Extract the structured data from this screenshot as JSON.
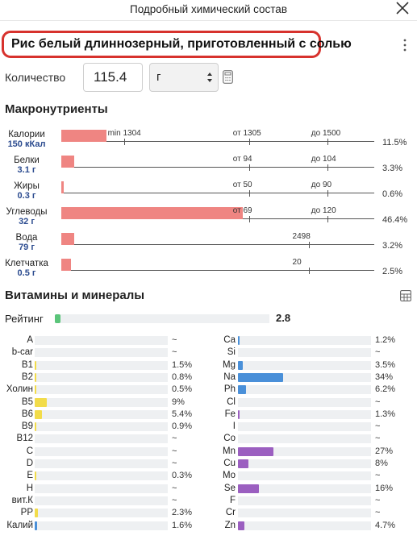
{
  "header": {
    "title": "Подробный химический состав"
  },
  "product": {
    "name": "Рис белый длиннозерный, приготовленный с солью"
  },
  "quantity": {
    "label": "Количество",
    "value": "115.4",
    "unit": "г"
  },
  "macros": {
    "title": "Макронутриенты",
    "items": [
      {
        "name": "Калории",
        "amount": "150 кКал",
        "fraction": 0.115,
        "percent": "11.5%",
        "norm": [
          {
            "text": "min 1304",
            "mark": 0.2
          },
          {
            "text": "от 1305",
            "mark": 0.6
          },
          {
            "text": "до 1500",
            "mark": 0.85
          }
        ]
      },
      {
        "name": "Белки",
        "amount": "3.1 г",
        "fraction": 0.033,
        "percent": "3.3%",
        "norm": [
          {
            "text": "от 94",
            "mark": 0.6
          },
          {
            "text": "до 104",
            "mark": 0.85
          }
        ]
      },
      {
        "name": "Жиры",
        "amount": "0.3 г",
        "fraction": 0.006,
        "percent": "0.6%",
        "norm": [
          {
            "text": "от 50",
            "mark": 0.6
          },
          {
            "text": "до 90",
            "mark": 0.85
          }
        ]
      },
      {
        "name": "Углеводы",
        "amount": "32 г",
        "fraction": 0.464,
        "percent": "46.4%",
        "norm": [
          {
            "text": "от 69",
            "mark": 0.6
          },
          {
            "text": "до 120",
            "mark": 0.85
          }
        ]
      },
      {
        "name": "Вода",
        "amount": "79 г",
        "fraction": 0.032,
        "percent": "3.2%",
        "norm": [
          {
            "text": "2498",
            "mark": 0.79
          }
        ]
      },
      {
        "name": "Клетчатка",
        "amount": "0.5 г",
        "fraction": 0.025,
        "percent": "2.5%",
        "norm": [
          {
            "text": "20",
            "mark": 0.79
          }
        ]
      }
    ]
  },
  "vitamins": {
    "title": "Витамины и минералы",
    "rating": {
      "label": "Рейтинг",
      "value": "2.8",
      "fraction": 0.027
    },
    "colors": {
      "yellow": "#f2dc4a",
      "blue": "#4a90d9",
      "purple": "#9b5fc0",
      "green": "#5bc57a",
      "macro": "#ef8582"
    },
    "left": [
      {
        "name": "A",
        "value": "~",
        "fraction": 0,
        "color": "yellow"
      },
      {
        "name": "b-car",
        "value": "~",
        "fraction": 0,
        "color": "yellow"
      },
      {
        "name": "B1",
        "value": "1.5%",
        "fraction": 0.015,
        "color": "yellow"
      },
      {
        "name": "B2",
        "value": "0.8%",
        "fraction": 0.008,
        "color": "yellow"
      },
      {
        "name": "Холин",
        "value": "0.5%",
        "fraction": 0.005,
        "color": "yellow"
      },
      {
        "name": "B5",
        "value": "9%",
        "fraction": 0.09,
        "color": "yellow"
      },
      {
        "name": "B6",
        "value": "5.4%",
        "fraction": 0.054,
        "color": "yellow"
      },
      {
        "name": "B9",
        "value": "0.9%",
        "fraction": 0.009,
        "color": "yellow"
      },
      {
        "name": "B12",
        "value": "~",
        "fraction": 0,
        "color": "yellow"
      },
      {
        "name": "C",
        "value": "~",
        "fraction": 0,
        "color": "yellow"
      },
      {
        "name": "D",
        "value": "~",
        "fraction": 0,
        "color": "yellow"
      },
      {
        "name": "E",
        "value": "0.3%",
        "fraction": 0.003,
        "color": "yellow"
      },
      {
        "name": "H",
        "value": "~",
        "fraction": 0,
        "color": "yellow"
      },
      {
        "name": "вит.К",
        "value": "~",
        "fraction": 0,
        "color": "yellow"
      },
      {
        "name": "PP",
        "value": "2.3%",
        "fraction": 0.023,
        "color": "yellow"
      },
      {
        "name": "Калий",
        "value": "1.6%",
        "fraction": 0.016,
        "color": "blue"
      }
    ],
    "right": [
      {
        "name": "Ca",
        "value": "1.2%",
        "fraction": 0.012,
        "color": "blue"
      },
      {
        "name": "Si",
        "value": "~",
        "fraction": 0,
        "color": "blue"
      },
      {
        "name": "Mg",
        "value": "3.5%",
        "fraction": 0.035,
        "color": "blue"
      },
      {
        "name": "Na",
        "value": "34%",
        "fraction": 0.34,
        "color": "blue"
      },
      {
        "name": "Ph",
        "value": "6.2%",
        "fraction": 0.062,
        "color": "blue"
      },
      {
        "name": "Cl",
        "value": "~",
        "fraction": 0,
        "color": "blue"
      },
      {
        "name": "Fe",
        "value": "1.3%",
        "fraction": 0.013,
        "color": "purple"
      },
      {
        "name": "I",
        "value": "~",
        "fraction": 0,
        "color": "purple"
      },
      {
        "name": "Co",
        "value": "~",
        "fraction": 0,
        "color": "purple"
      },
      {
        "name": "Mn",
        "value": "27%",
        "fraction": 0.27,
        "color": "purple"
      },
      {
        "name": "Cu",
        "value": "8%",
        "fraction": 0.08,
        "color": "purple"
      },
      {
        "name": "Mo",
        "value": "~",
        "fraction": 0,
        "color": "purple"
      },
      {
        "name": "Se",
        "value": "16%",
        "fraction": 0.16,
        "color": "purple"
      },
      {
        "name": "F",
        "value": "~",
        "fraction": 0,
        "color": "purple"
      },
      {
        "name": "Cr",
        "value": "~",
        "fraction": 0,
        "color": "purple"
      },
      {
        "name": "Zn",
        "value": "4.7%",
        "fraction": 0.047,
        "color": "purple"
      }
    ]
  }
}
